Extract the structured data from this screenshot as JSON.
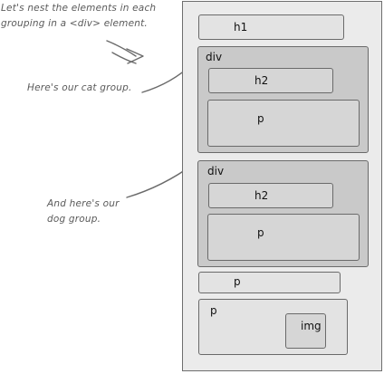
{
  "annotations": {
    "nest_note_line1": "Let's nest the elements in each",
    "nest_note_line2": "grouping in a <div> element.",
    "cat_note": "Here's our cat group.",
    "dog_note_line1": "And here's our",
    "dog_note_line2": "dog group."
  },
  "page": {
    "h1_label": "h1",
    "cat_group": {
      "div_label": "div",
      "h2_label": "h2",
      "p_label": "p"
    },
    "dog_group": {
      "div_label": "div",
      "h2_label": "h2",
      "p_label": "p"
    },
    "p_label": "p",
    "p_with_img": {
      "p_label": "p",
      "img_label": "img"
    }
  }
}
